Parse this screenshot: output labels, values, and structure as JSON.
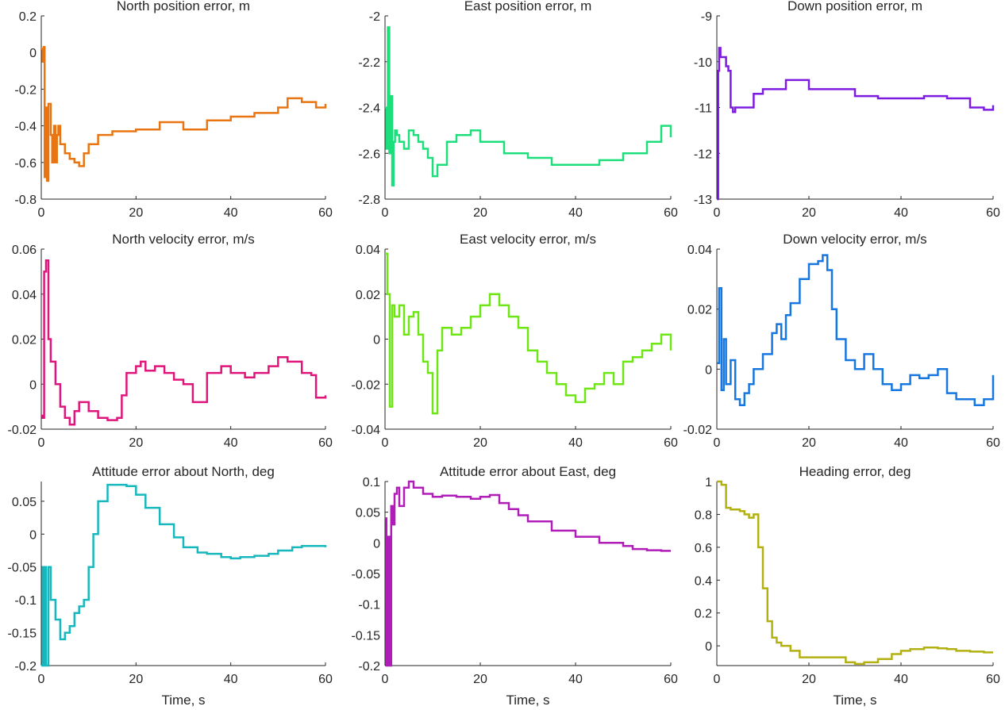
{
  "chart_data": [
    {
      "type": "line",
      "title": "North position error, m",
      "xlabel": "",
      "color": "#e87511",
      "xlim": [
        0,
        60
      ],
      "ylim": [
        -0.8,
        0.2
      ],
      "xticks": [
        "0",
        "20",
        "40",
        "60"
      ],
      "yticks": [
        "-0.8",
        "-0.6",
        "-0.4",
        "-0.2",
        "0",
        "0.2"
      ],
      "series": [
        {
          "name": "North position error",
          "x": [
            0,
            0.3,
            0.5,
            0.7,
            1,
            1.2,
            1.5,
            2,
            2.3,
            2.7,
            3,
            3.3,
            3.6,
            4,
            5,
            6,
            7,
            8,
            9,
            10,
            12,
            15,
            20,
            25,
            30,
            35,
            40,
            45,
            50,
            52,
            55,
            58,
            60
          ],
          "values": [
            0.02,
            -0.05,
            0.03,
            -0.68,
            -0.3,
            -0.7,
            -0.28,
            -0.45,
            -0.6,
            -0.4,
            -0.6,
            -0.45,
            -0.4,
            -0.5,
            -0.55,
            -0.58,
            -0.6,
            -0.62,
            -0.55,
            -0.5,
            -0.45,
            -0.43,
            -0.42,
            -0.38,
            -0.42,
            -0.37,
            -0.35,
            -0.33,
            -0.3,
            -0.25,
            -0.27,
            -0.3,
            -0.28
          ]
        }
      ]
    },
    {
      "type": "line",
      "title": "East position error, m",
      "xlabel": "",
      "color": "#1cdf7c",
      "xlim": [
        0,
        60
      ],
      "ylim": [
        -2.8,
        -2
      ],
      "xticks": [
        "0",
        "20",
        "40",
        "60"
      ],
      "yticks": [
        "-2.8",
        "-2.6",
        "-2.4",
        "-2.2",
        "-2"
      ],
      "series": [
        {
          "name": "East position error",
          "x": [
            0,
            0.3,
            0.6,
            0.9,
            1.2,
            1.5,
            1.8,
            2.1,
            2.5,
            3,
            4,
            5,
            6,
            7,
            8,
            9,
            10,
            11,
            13,
            15,
            18,
            20,
            25,
            30,
            35,
            40,
            45,
            50,
            55,
            58,
            60
          ],
          "values": [
            -2.4,
            -2.58,
            -2.05,
            -2.6,
            -2.35,
            -2.74,
            -2.55,
            -2.5,
            -2.52,
            -2.55,
            -2.58,
            -2.5,
            -2.52,
            -2.55,
            -2.58,
            -2.62,
            -2.7,
            -2.65,
            -2.55,
            -2.52,
            -2.5,
            -2.55,
            -2.6,
            -2.62,
            -2.65,
            -2.65,
            -2.63,
            -2.6,
            -2.55,
            -2.48,
            -2.53
          ]
        }
      ]
    },
    {
      "type": "line",
      "title": "Down position error, m",
      "xlabel": "",
      "color": "#7e1be0",
      "xlim": [
        0,
        60
      ],
      "ylim": [
        -13,
        -9
      ],
      "xticks": [
        "0",
        "20",
        "40",
        "60"
      ],
      "yticks": [
        "-13",
        "-12",
        "-11",
        "-10",
        "-9"
      ],
      "series": [
        {
          "name": "Down position error",
          "x": [
            0,
            0.3,
            0.5,
            0.8,
            1,
            2,
            2.5,
            3,
            3.5,
            4,
            5,
            6,
            8,
            10,
            15,
            20,
            25,
            30,
            35,
            40,
            45,
            50,
            55,
            58,
            60
          ],
          "values": [
            -13,
            -10.2,
            -9.7,
            -9.9,
            -9.9,
            -10.1,
            -10.2,
            -11,
            -11.1,
            -11,
            -11.0,
            -11.0,
            -10.7,
            -10.6,
            -10.4,
            -10.6,
            -10.6,
            -10.75,
            -10.8,
            -10.8,
            -10.75,
            -10.8,
            -11.0,
            -11.05,
            -10.95
          ]
        }
      ]
    },
    {
      "type": "line",
      "title": "North velocity error, m/s",
      "xlabel": "",
      "color": "#e0157b",
      "xlim": [
        0,
        60
      ],
      "ylim": [
        -0.02,
        0.06
      ],
      "xticks": [
        "0",
        "20",
        "40",
        "60"
      ],
      "yticks": [
        "-0.02",
        "0",
        "0.02",
        "0.04",
        "0.06"
      ],
      "series": [
        {
          "name": "North velocity error",
          "x": [
            0,
            0.3,
            0.6,
            1,
            1.5,
            2,
            2.5,
            3,
            4,
            5,
            6,
            7,
            8,
            10,
            12,
            14,
            16,
            17,
            18,
            20,
            21,
            22,
            24,
            26,
            28,
            30,
            32,
            35,
            38,
            40,
            43,
            45,
            48,
            50,
            52,
            55,
            57,
            58,
            60
          ],
          "values": [
            -0.014,
            -0.015,
            0.05,
            0.055,
            0.02,
            0.01,
            0.01,
            0,
            -0.01,
            -0.015,
            -0.018,
            -0.012,
            -0.008,
            -0.012,
            -0.015,
            -0.016,
            -0.015,
            -0.005,
            0.005,
            0.008,
            0.01,
            0.006,
            0.008,
            0.005,
            0.002,
            0,
            -0.008,
            0.005,
            0.008,
            0.005,
            0.003,
            0.005,
            0.008,
            0.012,
            0.01,
            0.005,
            0.004,
            -0.006,
            -0.005
          ]
        }
      ]
    },
    {
      "type": "line",
      "title": "East velocity error, m/s",
      "xlabel": "",
      "color": "#6de614",
      "xlim": [
        0,
        60
      ],
      "ylim": [
        -0.04,
        0.04
      ],
      "xticks": [
        "0",
        "20",
        "40",
        "60"
      ],
      "yticks": [
        "-0.04",
        "-0.02",
        "0",
        "0.02",
        "0.04"
      ],
      "series": [
        {
          "name": "East velocity error",
          "x": [
            0,
            0.5,
            1,
            1.5,
            2,
            3,
            4,
            5,
            6,
            7,
            8,
            9,
            10,
            11,
            12,
            14,
            16,
            18,
            20,
            22,
            24,
            26,
            28,
            30,
            32,
            34,
            36,
            38,
            40,
            42,
            44,
            46,
            48,
            50,
            52,
            54,
            56,
            58,
            60
          ],
          "values": [
            0.038,
            0.02,
            -0.03,
            0.015,
            0.01,
            0.015,
            0.002,
            0.01,
            0.012,
            0.002,
            -0.01,
            -0.015,
            -0.033,
            -0.005,
            0.005,
            0.002,
            0.005,
            0.01,
            0.015,
            0.02,
            0.015,
            0.01,
            0.005,
            -0.005,
            -0.01,
            -0.015,
            -0.02,
            -0.025,
            -0.028,
            -0.022,
            -0.02,
            -0.015,
            -0.02,
            -0.01,
            -0.008,
            -0.005,
            -0.002,
            0.002,
            -0.005
          ]
        }
      ]
    },
    {
      "type": "line",
      "title": "Down velocity error, m/s",
      "xlabel": "",
      "color": "#1677e0",
      "xlim": [
        0,
        60
      ],
      "ylim": [
        -0.02,
        0.04
      ],
      "xticks": [
        "0",
        "20",
        "40",
        "60"
      ],
      "yticks": [
        "-0.02",
        "0",
        "0.02",
        "0.04"
      ],
      "series": [
        {
          "name": "Down velocity error",
          "x": [
            0,
            0.5,
            1,
            1.5,
            2,
            3,
            4,
            5,
            6,
            7,
            8,
            10,
            12,
            13,
            14,
            15,
            16,
            18,
            20,
            22,
            23,
            24,
            25,
            26,
            28,
            30,
            32,
            34,
            36,
            38,
            40,
            42,
            44,
            46,
            48,
            50,
            52,
            54,
            56,
            58,
            60
          ],
          "values": [
            0.002,
            0.027,
            -0.007,
            0.01,
            -0.005,
            0.003,
            -0.01,
            -0.012,
            -0.008,
            -0.005,
            0,
            0.005,
            0.012,
            0.015,
            0.01,
            0.018,
            0.022,
            0.03,
            0.035,
            0.036,
            0.038,
            0.033,
            0.02,
            0.01,
            0.003,
            0,
            0.005,
            0,
            -0.005,
            -0.007,
            -0.005,
            -0.002,
            -0.003,
            -0.002,
            0,
            -0.008,
            -0.01,
            -0.01,
            -0.012,
            -0.01,
            -0.002
          ]
        }
      ]
    },
    {
      "type": "line",
      "title": "Attitude error about North, deg",
      "xlabel": "Time, s",
      "color": "#17b8bd",
      "xlim": [
        0,
        60
      ],
      "ylim": [
        -0.2,
        0.08
      ],
      "xticks": [
        "0",
        "20",
        "40",
        "60"
      ],
      "yticks": [
        "-0.2",
        "-0.15",
        "-0.1",
        "-0.05",
        "0",
        "0.05"
      ],
      "series": [
        {
          "name": "Attitude error about North",
          "x": [
            0,
            0.3,
            0.5,
            0.8,
            1,
            1.5,
            2,
            3,
            4,
            5,
            6,
            7,
            8,
            9,
            10,
            11,
            12,
            14,
            16,
            18,
            20,
            22,
            25,
            28,
            30,
            33,
            35,
            38,
            40,
            42,
            45,
            48,
            50,
            53,
            55,
            58,
            60
          ],
          "values": [
            -0.2,
            -0.05,
            -0.2,
            -0.05,
            -0.2,
            -0.05,
            -0.1,
            -0.13,
            -0.16,
            -0.15,
            -0.14,
            -0.12,
            -0.11,
            -0.1,
            -0.05,
            0,
            0.05,
            0.075,
            0.075,
            0.073,
            0.06,
            0.04,
            0.015,
            -0.005,
            -0.02,
            -0.028,
            -0.03,
            -0.035,
            -0.037,
            -0.035,
            -0.033,
            -0.03,
            -0.025,
            -0.02,
            -0.018,
            -0.018,
            -0.02
          ]
        }
      ]
    },
    {
      "type": "line",
      "title": "Attitude error about East, deg",
      "xlabel": "Time, s",
      "color": "#b01cb8",
      "xlim": [
        0,
        60
      ],
      "ylim": [
        -0.2,
        0.1
      ],
      "xticks": [
        "0",
        "20",
        "40",
        "60"
      ],
      "yticks": [
        "-0.2",
        "-0.15",
        "-0.1",
        "-0.05",
        "0",
        "0.05",
        "0.1"
      ],
      "series": [
        {
          "name": "Attitude error about East",
          "x": [
            0,
            0.3,
            0.6,
            1,
            1.3,
            1.6,
            2,
            2.5,
            3,
            4,
            5,
            6,
            8,
            10,
            12,
            15,
            18,
            20,
            22,
            24,
            26,
            28,
            30,
            35,
            40,
            45,
            50,
            52,
            55,
            58,
            60
          ],
          "values": [
            0.04,
            -0.2,
            0.01,
            -0.2,
            0.06,
            0.03,
            0.08,
            0.09,
            0.06,
            0.09,
            0.1,
            0.09,
            0.08,
            0.075,
            0.077,
            0.075,
            0.072,
            0.075,
            0.078,
            0.065,
            0.055,
            0.045,
            0.035,
            0.02,
            0.01,
            0,
            -0.005,
            -0.01,
            -0.012,
            -0.013,
            -0.013
          ]
        }
      ]
    },
    {
      "type": "line",
      "title": "Heading error, deg",
      "xlabel": "Time, s",
      "color": "#b3b012",
      "xlim": [
        0,
        60
      ],
      "ylim": [
        -0.12,
        1
      ],
      "xticks": [
        "0",
        "20",
        "40",
        "60"
      ],
      "yticks": [
        "0",
        "0.2",
        "0.4",
        "0.6",
        "0.8",
        "1"
      ],
      "series": [
        {
          "name": "Heading error",
          "x": [
            0,
            1,
            2,
            3,
            4,
            5,
            6,
            7,
            8,
            9,
            10,
            11,
            12,
            13,
            14,
            16,
            18,
            20,
            22,
            25,
            28,
            30,
            32,
            35,
            38,
            40,
            42,
            45,
            48,
            50,
            52,
            55,
            58,
            60
          ],
          "values": [
            1,
            0.98,
            0.84,
            0.83,
            0.83,
            0.82,
            0.8,
            0.78,
            0.8,
            0.6,
            0.35,
            0.15,
            0.05,
            0.02,
            0,
            -0.03,
            -0.07,
            -0.07,
            -0.07,
            -0.07,
            -0.1,
            -0.11,
            -0.1,
            -0.08,
            -0.05,
            -0.03,
            -0.02,
            -0.01,
            -0.015,
            -0.02,
            -0.03,
            -0.035,
            -0.04,
            -0.04
          ]
        }
      ]
    }
  ]
}
